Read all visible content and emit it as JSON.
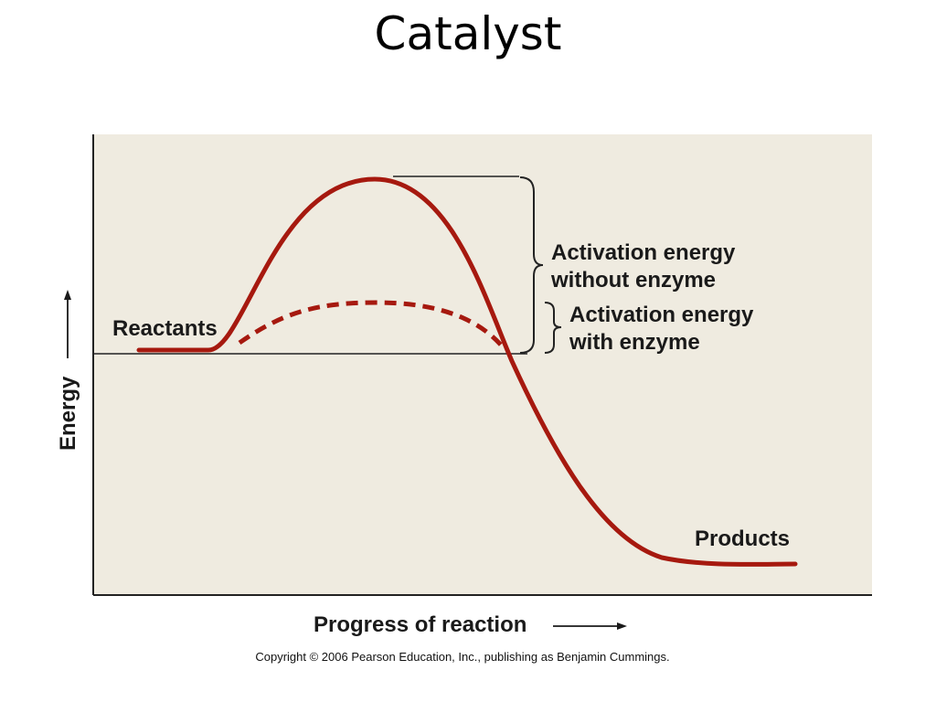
{
  "title": "Catalyst",
  "diagram": {
    "y_axis_label": "Energy",
    "x_axis_label": "Progress of reaction",
    "reactants_label": "Reactants",
    "products_label": "Products",
    "without_enzyme_label": [
      "Activation energy",
      "without enzyme"
    ],
    "with_enzyme_label": [
      "Activation energy",
      "with enzyme"
    ],
    "curve_color": "#a6190f",
    "background_color": "#efebe0"
  },
  "copyright": "Copyright © 2006 Pearson Education, Inc., publishing as Benjamin Cummings."
}
